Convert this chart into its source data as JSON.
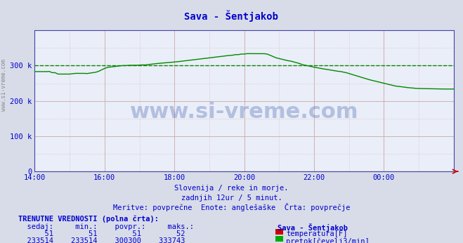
{
  "title": "Sava - Šentjakob",
  "bg_color": "#d8dce8",
  "plot_bg_color": "#eaeef8",
  "grid_major_color": "#c8a8a8",
  "grid_minor_color": "#dcc8c8",
  "line_flow_color": "#008800",
  "line_temp_color": "#cc0000",
  "avg_line_color": "#008800",
  "avg_line_value": 300300,
  "title_color": "#0000cc",
  "tick_color": "#0000cc",
  "text_color": "#0000cc",
  "ymax": 400000,
  "ytick_values": [
    0,
    100000,
    200000,
    300000
  ],
  "ytick_labels": [
    "0",
    "100 k",
    "200 k",
    "300 k"
  ],
  "xtick_positions": [
    0,
    24,
    48,
    72,
    96,
    120
  ],
  "xtick_labels": [
    "14:00",
    "16:00",
    "18:00",
    "20:00",
    "22:00",
    "00:00"
  ],
  "num_points": 145,
  "subtitle1": "Slovenija / reke in morje.",
  "subtitle2": "zadnjih 12ur / 5 minut.",
  "subtitle3": "Meritve: povprečne  Enote: anglešaške  Črta: povprečje",
  "footer_title": "TRENUTNE VREDNOSTI (polna črta):",
  "col_headers": "sedaj:       min.:      povpr.:      maks.:     Sava - Šentjakob",
  "temp_values": "    51          51          51          52",
  "flow_values": "233514      233514      300300      333743",
  "temp_label": "temperatura[F]",
  "flow_label": "pretok[čevelj3/min]",
  "legend_temp_color": "#cc0000",
  "legend_flow_color": "#00aa00",
  "watermark_text": "www.si-vreme.com",
  "watermark_color": "#3355aa",
  "watermark_alpha": 0.3,
  "sidebar_text": "www.si-vreme.com",
  "sidebar_color": "#888888"
}
